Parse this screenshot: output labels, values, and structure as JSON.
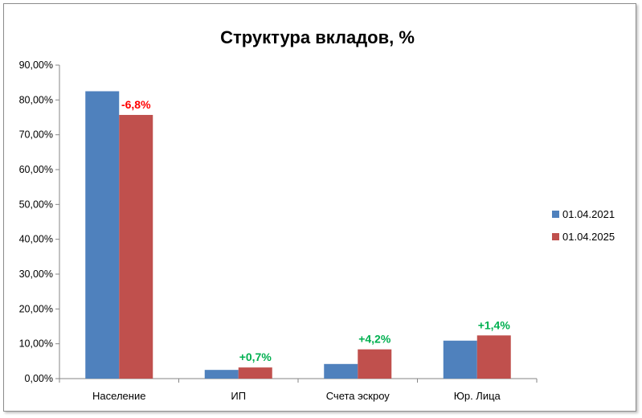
{
  "chart_data": {
    "type": "bar",
    "title": "Структура вкладов, %",
    "categories": [
      "Население",
      "ИП",
      "Счета эскроу",
      "Юр. Лица"
    ],
    "series": [
      {
        "name": "01.04.2021",
        "color": "#4f81bd",
        "values": [
          82.5,
          2.5,
          4.2,
          10.9
        ]
      },
      {
        "name": "01.04.2025",
        "color": "#c0504d",
        "values": [
          75.7,
          3.2,
          8.4,
          12.4
        ]
      }
    ],
    "data_labels": [
      {
        "category_index": 0,
        "text": "-6,8%",
        "color": "#ff0000"
      },
      {
        "category_index": 1,
        "text": "+0,7%",
        "color": "#00b050"
      },
      {
        "category_index": 2,
        "text": "+4,2%",
        "color": "#00b050"
      },
      {
        "category_index": 3,
        "text": "+1,4%",
        "color": "#00b050"
      }
    ],
    "y_ticks": [
      "0,00%",
      "10,00%",
      "20,00%",
      "30,00%",
      "40,00%",
      "50,00%",
      "60,00%",
      "70,00%",
      "80,00%",
      "90,00%"
    ],
    "ylim": [
      0,
      90
    ],
    "legend_position": "right",
    "grid": false,
    "xlabel": "",
    "ylabel": ""
  }
}
